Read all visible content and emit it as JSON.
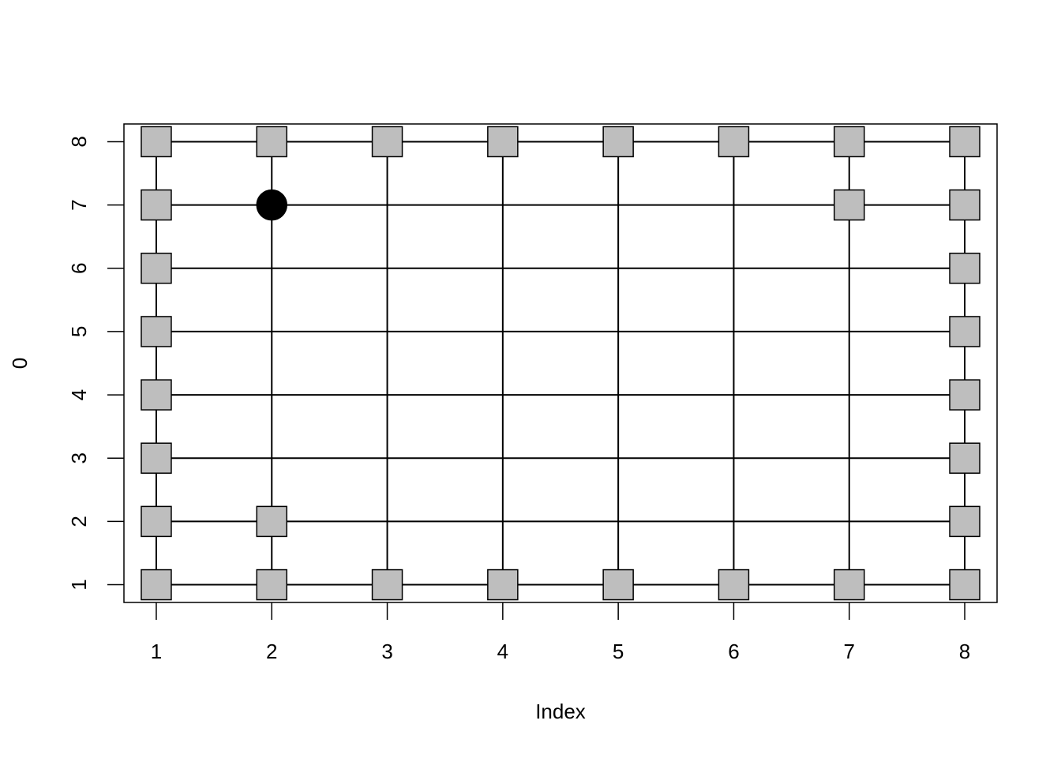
{
  "chart_data": {
    "type": "scatter",
    "title": "",
    "xlabel": "Index",
    "ylabel": "0",
    "xlim": [
      0.72,
      8.28
    ],
    "ylim": [
      0.72,
      8.28
    ],
    "x_ticks": [
      "1",
      "2",
      "3",
      "4",
      "5",
      "6",
      "7",
      "8"
    ],
    "y_ticks": [
      "1",
      "2",
      "3",
      "4",
      "5",
      "6",
      "7",
      "8"
    ],
    "grid_lines": {
      "horizontal": [
        1,
        2,
        3,
        4,
        5,
        6,
        7,
        8
      ],
      "vertical": [
        1,
        2,
        3,
        4,
        5,
        6,
        7,
        8
      ]
    },
    "square_points": [
      [
        1,
        8
      ],
      [
        2,
        8
      ],
      [
        3,
        8
      ],
      [
        4,
        8
      ],
      [
        5,
        8
      ],
      [
        6,
        8
      ],
      [
        7,
        8
      ],
      [
        8,
        8
      ],
      [
        1,
        7
      ],
      [
        7,
        7
      ],
      [
        8,
        7
      ],
      [
        1,
        6
      ],
      [
        8,
        6
      ],
      [
        1,
        5
      ],
      [
        8,
        5
      ],
      [
        1,
        4
      ],
      [
        8,
        4
      ],
      [
        1,
        3
      ],
      [
        8,
        3
      ],
      [
        1,
        2
      ],
      [
        2,
        2
      ],
      [
        8,
        2
      ],
      [
        1,
        1
      ],
      [
        2,
        1
      ],
      [
        3,
        1
      ],
      [
        4,
        1
      ],
      [
        5,
        1
      ],
      [
        6,
        1
      ],
      [
        7,
        1
      ],
      [
        8,
        1
      ]
    ],
    "circle_points": [
      [
        2,
        7
      ]
    ],
    "square_color": "#bebebe",
    "circle_color": "#000000",
    "line_color": "#000000"
  }
}
